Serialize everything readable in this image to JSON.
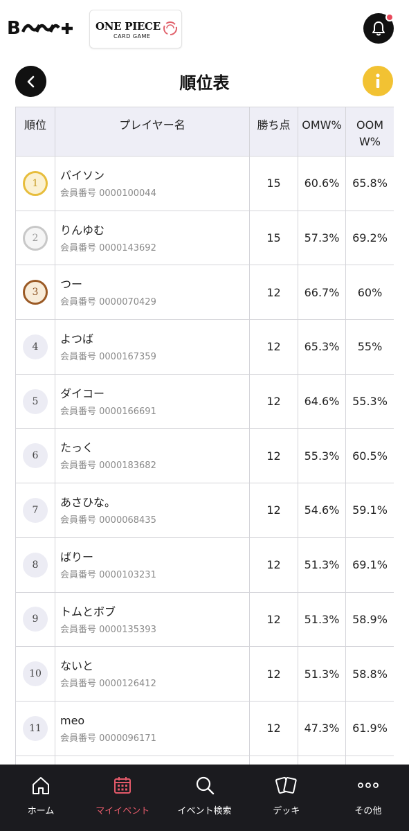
{
  "header": {
    "brand_logo_text": "B",
    "partner_logo_line1": "ONE PIECE",
    "partner_logo_line2": "CARD GAME",
    "has_notification": true
  },
  "page": {
    "title": "順位表"
  },
  "table": {
    "headers": {
      "rank": "順位",
      "player": "プレイヤー名",
      "points": "勝ち点",
      "omw": "OMW%",
      "oomw": "OOMW%"
    },
    "rows": [
      {
        "rank": "1",
        "medal": "gold",
        "name": "バイソン",
        "member_id": "会員番号 0000100044",
        "points": "15",
        "omw": "60.6%",
        "oomw": "65.8%"
      },
      {
        "rank": "2",
        "medal": "silver",
        "name": "りんゆむ",
        "member_id": "会員番号 0000143692",
        "points": "15",
        "omw": "57.3%",
        "oomw": "69.2%"
      },
      {
        "rank": "3",
        "medal": "bronze",
        "name": "つー",
        "member_id": "会員番号 0000070429",
        "points": "12",
        "omw": "66.7%",
        "oomw": "60%"
      },
      {
        "rank": "4",
        "medal": "none",
        "name": "よつば",
        "member_id": "会員番号 0000167359",
        "points": "12",
        "omw": "65.3%",
        "oomw": "55%"
      },
      {
        "rank": "5",
        "medal": "none",
        "name": "ダイコー",
        "member_id": "会員番号 0000166691",
        "points": "12",
        "omw": "64.6%",
        "oomw": "55.3%"
      },
      {
        "rank": "6",
        "medal": "none",
        "name": "たっく",
        "member_id": "会員番号 0000183682",
        "points": "12",
        "omw": "55.3%",
        "oomw": "60.5%"
      },
      {
        "rank": "7",
        "medal": "none",
        "name": "あさひな。",
        "member_id": "会員番号 0000068435",
        "points": "12",
        "omw": "54.6%",
        "oomw": "59.1%"
      },
      {
        "rank": "8",
        "medal": "none",
        "name": "ばりー",
        "member_id": "会員番号 0000103231",
        "points": "12",
        "omw": "51.3%",
        "oomw": "69.1%"
      },
      {
        "rank": "9",
        "medal": "none",
        "name": "トムとボブ",
        "member_id": "会員番号 0000135393",
        "points": "12",
        "omw": "51.3%",
        "oomw": "58.9%"
      },
      {
        "rank": "10",
        "medal": "none",
        "name": "ないと",
        "member_id": "会員番号 0000126412",
        "points": "12",
        "omw": "51.3%",
        "oomw": "58.8%"
      },
      {
        "rank": "11",
        "medal": "none",
        "name": "meo",
        "member_id": "会員番号 0000096171",
        "points": "12",
        "omw": "47.3%",
        "oomw": "61.9%"
      }
    ]
  },
  "bottom_nav": [
    {
      "label": "ホーム",
      "icon": "home-icon",
      "active": false
    },
    {
      "label": "マイイベント",
      "icon": "calendar-icon",
      "active": true
    },
    {
      "label": "イベント検索",
      "icon": "search-icon",
      "active": false
    },
    {
      "label": "デッキ",
      "icon": "cards-icon",
      "active": false
    },
    {
      "label": "その他",
      "icon": "more-icon",
      "active": false
    }
  ],
  "colors": {
    "accent_active": "#e55a6a",
    "info_yellow": "#f2c233",
    "notification_dot": "#e8495b",
    "gold": "#e7bd3c",
    "silver": "#c8c8c8",
    "bronze": "#9b5a25"
  }
}
